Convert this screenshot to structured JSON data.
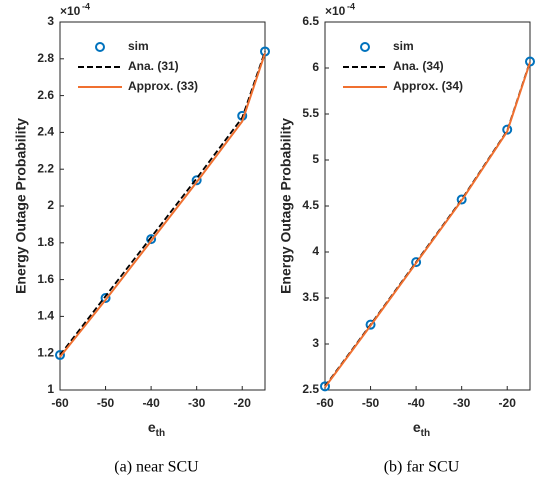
{
  "chart_data": [
    {
      "type": "line",
      "ylabel": "Energy Outage Probability",
      "xlabel": "e",
      "xlabel_sub": "th",
      "y_multiplier": "×10",
      "y_multiplier_exp": "-4",
      "caption": "(a) near SCU",
      "x": [
        -60,
        -50,
        -40,
        -30,
        -20,
        -15
      ],
      "xlim": [
        -60,
        -15
      ],
      "xticks": [
        -60,
        -50,
        -40,
        -30,
        -20
      ],
      "ylim": [
        1,
        3
      ],
      "yticks": [
        1,
        1.2,
        1.4,
        1.6,
        1.8,
        2,
        2.2,
        2.4,
        2.6,
        2.8,
        3
      ],
      "legend": "upper left",
      "series": [
        {
          "name": "sim",
          "color": "#0072bd",
          "style": "marker",
          "values": [
            1.19,
            1.5,
            1.82,
            2.14,
            2.49,
            2.84
          ]
        },
        {
          "name": "Ana. (31)",
          "color": "#000000",
          "style": "dashed",
          "values": [
            1.19,
            1.51,
            1.83,
            2.15,
            2.48,
            2.84
          ]
        },
        {
          "name": "Approx. (33)",
          "color": "#f07030",
          "style": "solid",
          "values": [
            1.18,
            1.49,
            1.81,
            2.13,
            2.46,
            2.83
          ]
        }
      ]
    },
    {
      "type": "line",
      "ylabel": "Energy Outage Probability",
      "xlabel": "e",
      "xlabel_sub": "th",
      "y_multiplier": "×10",
      "y_multiplier_exp": "-4",
      "caption": "(b)  far SCU",
      "x": [
        -60,
        -50,
        -40,
        -30,
        -20,
        -15
      ],
      "xlim": [
        -60,
        -15
      ],
      "xticks": [
        -60,
        -50,
        -40,
        -30,
        -20
      ],
      "ylim": [
        2.5,
        6.5
      ],
      "yticks": [
        2.5,
        3,
        3.5,
        4,
        4.5,
        5,
        5.5,
        6,
        6.5
      ],
      "legend": "upper left",
      "series": [
        {
          "name": "sim",
          "color": "#0072bd",
          "style": "marker",
          "values": [
            2.54,
            3.21,
            3.89,
            4.57,
            5.33,
            6.07
          ]
        },
        {
          "name": "Ana. (34)",
          "color": "#000000",
          "style": "dashed",
          "values": [
            2.54,
            3.21,
            3.89,
            4.57,
            5.32,
            6.07
          ]
        },
        {
          "name": "Approx. (34)",
          "color": "#f07030",
          "style": "solid",
          "values": [
            2.53,
            3.2,
            3.88,
            4.56,
            5.31,
            6.06
          ]
        }
      ]
    }
  ]
}
